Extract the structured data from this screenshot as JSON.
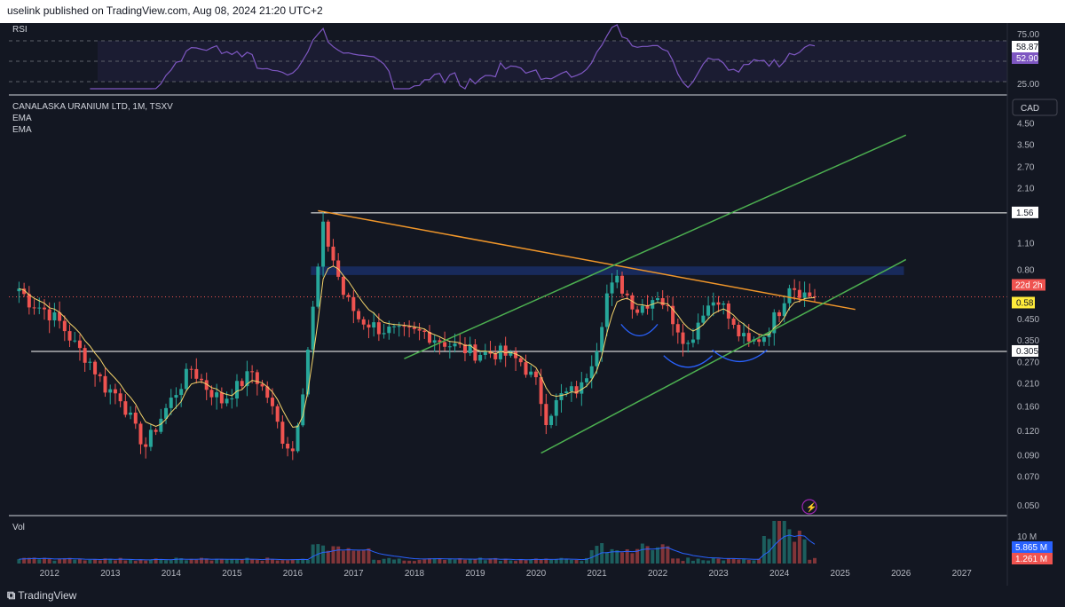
{
  "header": {
    "publisher_line": "uselink published on TradingView.com, Aug 08, 2024 21:20 UTC+2"
  },
  "legend": {
    "symbol": "CANALASKA URANIUM LTD, 1M, TSXV",
    "ind1": "EMA",
    "ind2": "EMA"
  },
  "rsi_panel": {
    "title": "RSI",
    "ticks": [
      "75.00",
      "25.00"
    ],
    "value_high": "58.87",
    "value_current": "52.90"
  },
  "vol_panel": {
    "title": "Vol",
    "tick": "10 M",
    "value_ma": "5.865 M",
    "value_vol": "1.261 M"
  },
  "price_axis": {
    "currency": "CAD",
    "countdown": "22d 2h",
    "last_price": "0.58",
    "level_upper": "1.56",
    "level_lower": "0.305"
  },
  "footer": {
    "brand": "TradingView"
  },
  "colors": {
    "up": "#26a69a",
    "down": "#ef5350",
    "ema": "#f5d46b",
    "trendline": "#f0962a",
    "channel": "#4caf50",
    "zone": "#1e3a8a",
    "rsi": "#7e57c2"
  },
  "chart_data": {
    "type": "candlestick",
    "title": "CANALASKA URANIUM LTD, 1M, TSXV",
    "yscale": "log",
    "ylim": [
      0.045,
      6.0
    ],
    "y_ticks": [
      "4.50",
      "3.50",
      "2.70",
      "2.10",
      "1.10",
      "0.80",
      "0.450",
      "0.350",
      "0.270",
      "0.210",
      "0.160",
      "0.120",
      "0.090",
      "0.070",
      "0.050"
    ],
    "x_ticks": [
      "2012",
      "2013",
      "2014",
      "2015",
      "2016",
      "2017",
      "2018",
      "2019",
      "2020",
      "2021",
      "2022",
      "2023",
      "2024",
      "2025",
      "2026",
      "2027"
    ],
    "start": "2011-07",
    "xlim": [
      "2011-05",
      "2027-10"
    ],
    "close_anchors": [
      [
        "2011-07",
        0.64
      ],
      [
        "2011-09",
        0.55
      ],
      [
        "2011-12",
        0.5
      ],
      [
        "2012-03",
        0.43
      ],
      [
        "2012-06",
        0.33
      ],
      [
        "2012-09",
        0.27
      ],
      [
        "2012-12",
        0.2
      ],
      [
        "2013-03",
        0.18
      ],
      [
        "2013-06",
        0.12
      ],
      [
        "2013-08",
        0.1
      ],
      [
        "2013-11",
        0.14
      ],
      [
        "2014-02",
        0.19
      ],
      [
        "2014-05",
        0.25
      ],
      [
        "2014-08",
        0.2
      ],
      [
        "2014-11",
        0.17
      ],
      [
        "2015-02",
        0.2
      ],
      [
        "2015-05",
        0.24
      ],
      [
        "2015-08",
        0.18
      ],
      [
        "2015-11",
        0.11
      ],
      [
        "2016-01",
        0.095
      ],
      [
        "2016-03",
        0.2
      ],
      [
        "2016-05",
        0.5
      ],
      [
        "2016-07",
        1.3
      ],
      [
        "2016-09",
        0.9
      ],
      [
        "2016-11",
        0.6
      ],
      [
        "2017-02",
        0.45
      ],
      [
        "2017-06",
        0.4
      ],
      [
        "2017-10",
        0.38
      ],
      [
        "2018-03",
        0.38
      ],
      [
        "2018-08",
        0.33
      ],
      [
        "2019-01",
        0.3
      ],
      [
        "2019-06",
        0.3
      ],
      [
        "2019-10",
        0.27
      ],
      [
        "2020-01",
        0.21
      ],
      [
        "2020-03",
        0.14
      ],
      [
        "2020-06",
        0.18
      ],
      [
        "2020-10",
        0.2
      ],
      [
        "2021-01",
        0.33
      ],
      [
        "2021-03",
        0.6
      ],
      [
        "2021-05",
        0.7
      ],
      [
        "2021-09",
        0.5
      ],
      [
        "2022-01",
        0.6
      ],
      [
        "2022-04",
        0.45
      ],
      [
        "2022-07",
        0.33
      ],
      [
        "2022-10",
        0.5
      ],
      [
        "2023-01",
        0.58
      ],
      [
        "2023-04",
        0.4
      ],
      [
        "2023-07",
        0.33
      ],
      [
        "2023-10",
        0.37
      ],
      [
        "2024-01",
        0.5
      ],
      [
        "2024-03",
        0.68
      ],
      [
        "2024-06",
        0.6
      ],
      [
        "2024-08",
        0.58
      ]
    ],
    "horizontal_levels": [
      1.56,
      0.305
    ],
    "resistance_zone": [
      0.75,
      0.83
    ],
    "trendline": [
      [
        "2016-06",
        1.6
      ],
      [
        "2025-04",
        0.5
      ]
    ],
    "channel": [
      [
        [
          "2017-11",
          0.28
        ],
        [
          "2026-02",
          3.9
        ]
      ],
      [
        [
          "2020-02",
          0.092
        ],
        [
          "2026-02",
          0.9
        ]
      ]
    ],
    "rsi": {
      "ylim": [
        0,
        100
      ],
      "levels": [
        75,
        50,
        25
      ],
      "current": 52.9
    },
    "volume": {
      "peak_month": "2024-01"
    }
  }
}
